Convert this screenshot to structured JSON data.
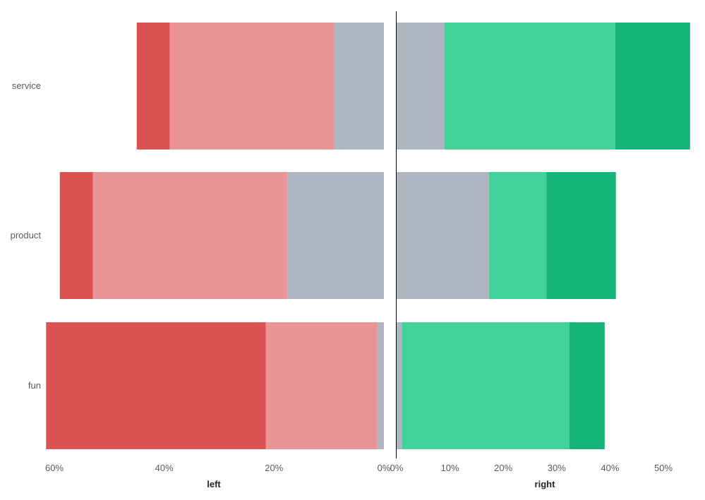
{
  "chart_data": {
    "type": "bar",
    "orientation": "horizontal",
    "layout": "diverging",
    "categories": [
      "service",
      "product",
      "fun"
    ],
    "colors": {
      "strong_negative": "#dc5252",
      "negative": "#e99495",
      "neutral": "#b0b6c1",
      "positive": "#42d09b",
      "strong_positive": "#14b479",
      "center_line": "#000000"
    },
    "panels": [
      {
        "id": "left",
        "xlabel": "left",
        "direction": "reversed",
        "xlim": [
          0,
          60
        ],
        "ticks": [
          60,
          40,
          20,
          0
        ],
        "tick_labels": [
          "60%",
          "40%",
          "20%",
          "0%"
        ],
        "series": [
          {
            "key": "neutral",
            "color": "#b0b6c1",
            "values": [
              9,
              17.5,
              1.2
            ]
          },
          {
            "key": "negative",
            "color": "#e99495",
            "values": [
              30,
              35.5,
              20.3
            ]
          },
          {
            "key": "strong_negative",
            "color": "#dc5252",
            "values": [
              6,
              6,
              40
            ]
          }
        ]
      },
      {
        "id": "right",
        "xlabel": "right",
        "direction": "normal",
        "xlim": [
          0,
          50
        ],
        "ticks": [
          0,
          10,
          20,
          30,
          40,
          50
        ],
        "tick_labels": [
          "0%",
          "10%",
          "20%",
          "30%",
          "40%",
          "50%"
        ],
        "series": [
          {
            "key": "neutral",
            "color": "#b0b6c1",
            "values": [
              9,
              17.3,
              1
            ]
          },
          {
            "key": "positive",
            "color": "#42d09b",
            "values": [
              32,
              10.8,
              31.4
            ]
          },
          {
            "key": "strong_positive",
            "color": "#14b479",
            "values": [
              14,
              13,
              6.6
            ]
          }
        ]
      }
    ]
  }
}
